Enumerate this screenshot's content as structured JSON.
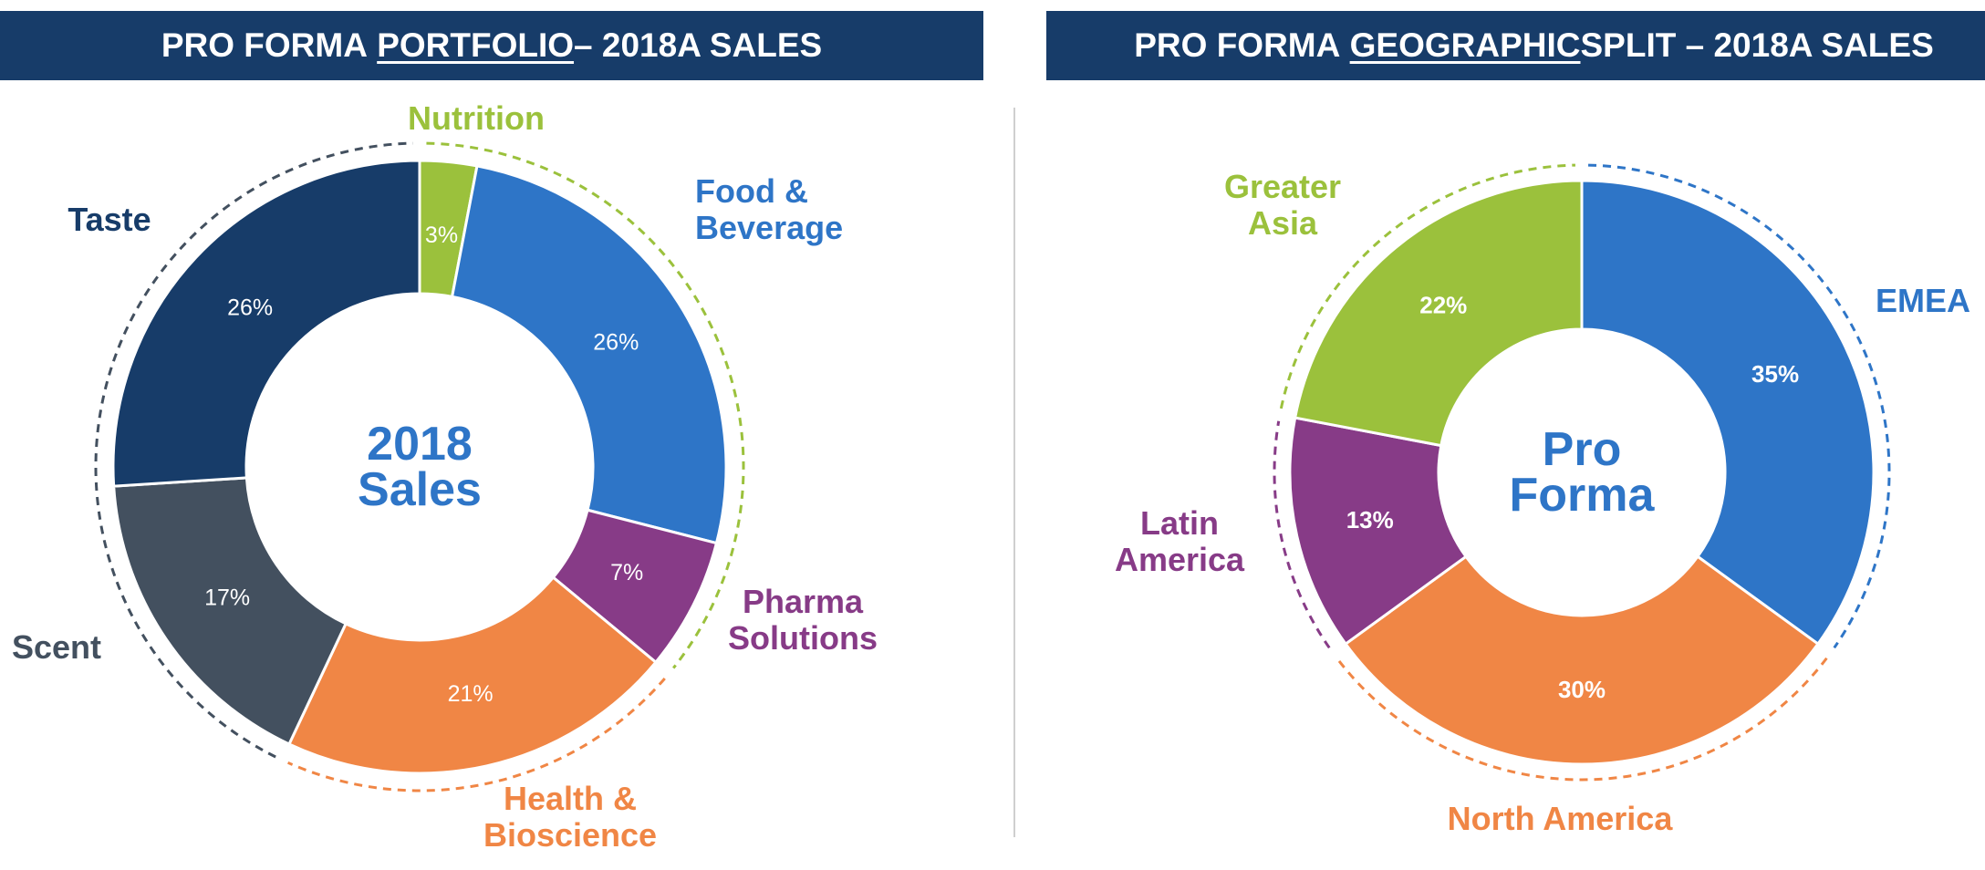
{
  "headers": {
    "left": {
      "prefix": "PRO FORMA ",
      "underlined": "PORTFOLIO",
      "suffix": " – 2018A SALES"
    },
    "right": {
      "prefix": "PRO FORMA ",
      "underlined": "GEOGRAPHIC",
      "suffix": " SPLIT – 2018A SALES"
    }
  },
  "chart_data": [
    {
      "type": "pie",
      "variant": "donut",
      "center_label": [
        "2018",
        "Sales"
      ],
      "center_color": "#2e75c7",
      "slices": [
        {
          "name": "Nutrition",
          "label_lines": [
            "Nutrition"
          ],
          "value": 3,
          "value_label": "3%",
          "color": "#9bc13c"
        },
        {
          "name": "Food & Beverage",
          "label_lines": [
            "Food &",
            "Beverage"
          ],
          "value": 26,
          "value_label": "26%",
          "color": "#2e75c7"
        },
        {
          "name": "Pharma Solutions",
          "label_lines": [
            "Pharma",
            "Solutions"
          ],
          "value": 7,
          "value_label": "7%",
          "color": "#873b87"
        },
        {
          "name": "Health & Bioscience",
          "label_lines": [
            "Health &",
            "Bioscience"
          ],
          "value": 21,
          "value_label": "21%",
          "color": "#f08645"
        },
        {
          "name": "Scent",
          "label_lines": [
            "Scent"
          ],
          "value": 17,
          "value_label": "17%",
          "color": "#43505f"
        },
        {
          "name": "Taste",
          "label_lines": [
            "Taste"
          ],
          "value": 26,
          "value_label": "26%",
          "color": "#173c69"
        }
      ]
    },
    {
      "type": "pie",
      "variant": "donut",
      "center_label": [
        "Pro",
        "Forma"
      ],
      "center_color": "#2e75c7",
      "slices": [
        {
          "name": "EMEA",
          "label_lines": [
            "EMEA"
          ],
          "value": 35,
          "value_label": "35%",
          "color": "#2e75c7"
        },
        {
          "name": "North America",
          "label_lines": [
            "North America"
          ],
          "value": 30,
          "value_label": "30%",
          "color": "#f08645"
        },
        {
          "name": "Latin America",
          "label_lines": [
            "Latin",
            "America"
          ],
          "value": 13,
          "value_label": "13%",
          "color": "#873b87"
        },
        {
          "name": "Greater Asia",
          "label_lines": [
            "Greater",
            "Asia"
          ],
          "value": 22,
          "value_label": "22%",
          "color": "#9bc13c"
        }
      ]
    }
  ]
}
